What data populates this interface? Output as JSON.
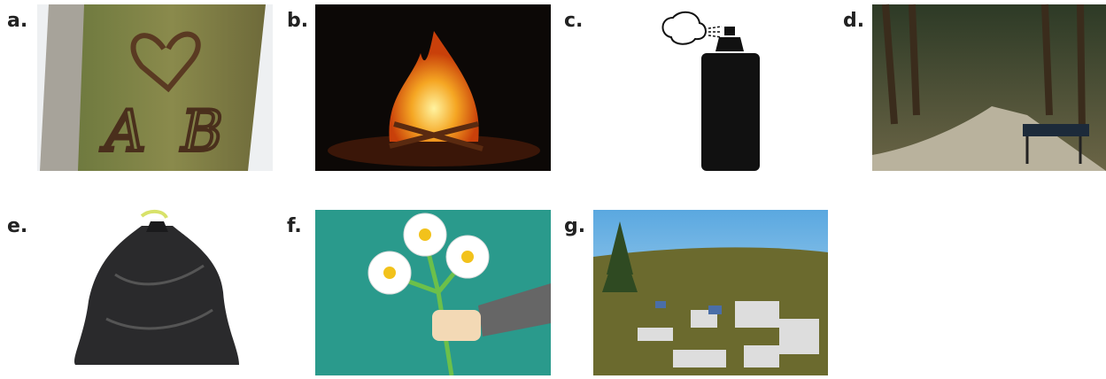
{
  "items": [
    {
      "label": "a.",
      "carving": "A B"
    },
    {
      "label": "b."
    },
    {
      "label": "c."
    },
    {
      "label": "d."
    },
    {
      "label": "e."
    },
    {
      "label": "f."
    },
    {
      "label": "g."
    }
  ]
}
